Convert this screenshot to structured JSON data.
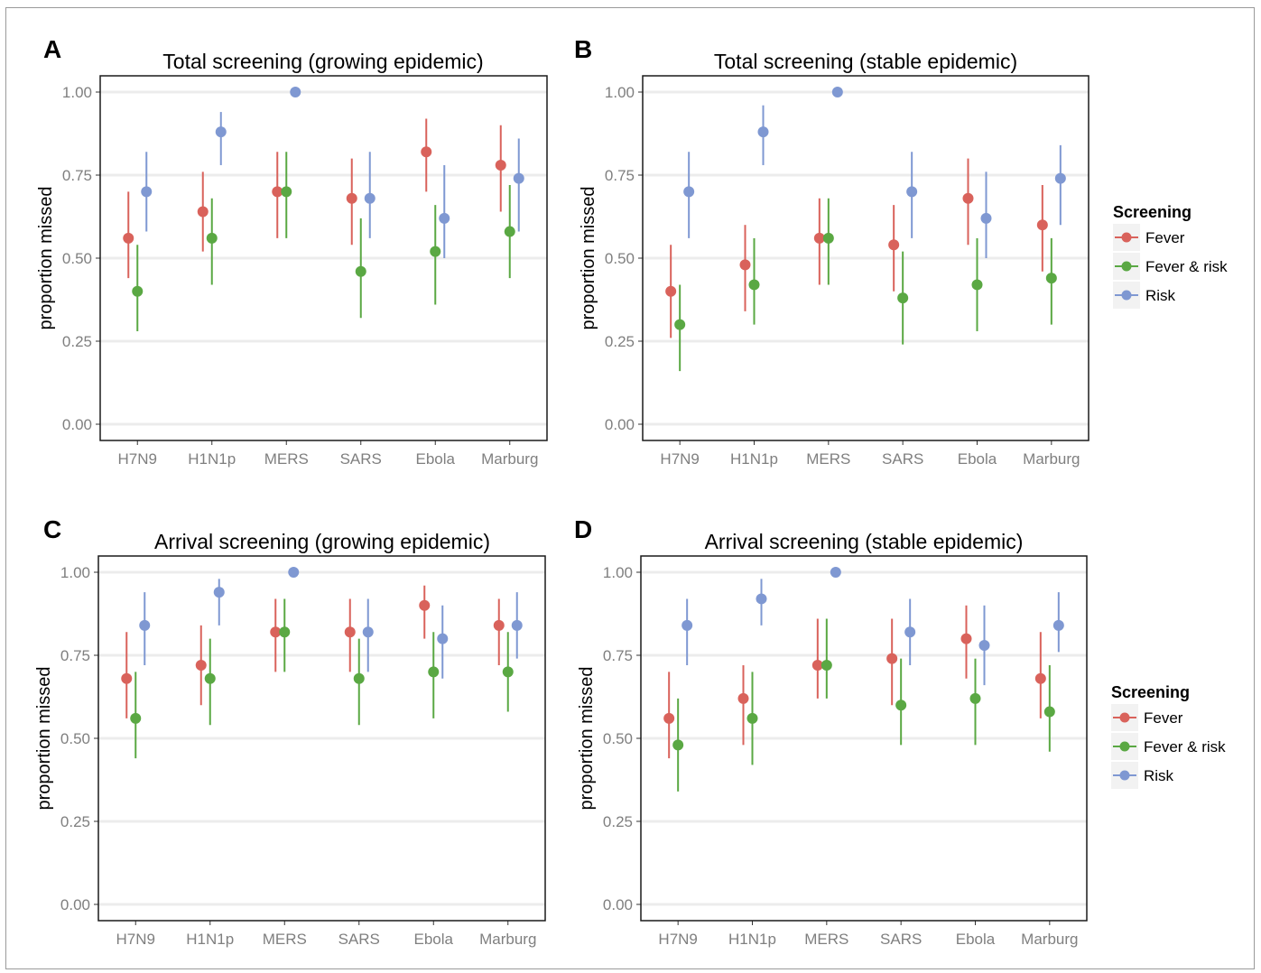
{
  "legend": {
    "title": "Screening",
    "entries": [
      "Fever",
      "Fever & risk",
      "Risk"
    ]
  },
  "colors": {
    "Fever": "#d9625b",
    "Fever & risk": "#5aa843",
    "Risk": "#7f98d2"
  },
  "chart_data": [
    {
      "type": "scatter",
      "panel": "A",
      "title": "Total screening (growing epidemic)",
      "xlabel": "",
      "ylabel": "proportion missed",
      "categories": [
        "H7N9",
        "H1N1p",
        "MERS",
        "SARS",
        "Ebola",
        "Marburg"
      ],
      "ylim": [
        0,
        1
      ],
      "yticks": [
        "0.00",
        "0.25",
        "0.50",
        "0.75",
        "1.00"
      ],
      "series": [
        {
          "name": "Fever",
          "values": [
            0.56,
            0.64,
            0.7,
            0.68,
            0.82,
            0.78
          ],
          "lower": [
            0.44,
            0.52,
            0.56,
            0.54,
            0.7,
            0.64
          ],
          "upper": [
            0.7,
            0.76,
            0.82,
            0.8,
            0.92,
            0.9
          ]
        },
        {
          "name": "Fever & risk",
          "values": [
            0.4,
            0.56,
            0.7,
            0.46,
            0.52,
            0.58
          ],
          "lower": [
            0.28,
            0.42,
            0.56,
            0.32,
            0.36,
            0.44
          ],
          "upper": [
            0.54,
            0.68,
            0.82,
            0.62,
            0.66,
            0.72
          ]
        },
        {
          "name": "Risk",
          "values": [
            0.7,
            0.88,
            1.0,
            0.68,
            0.62,
            0.74
          ],
          "lower": [
            0.58,
            0.78,
            1.0,
            0.56,
            0.5,
            0.58
          ],
          "upper": [
            0.82,
            0.94,
            1.0,
            0.82,
            0.78,
            0.86
          ]
        }
      ]
    },
    {
      "type": "scatter",
      "panel": "B",
      "title": "Total screening (stable epidemic)",
      "xlabel": "",
      "ylabel": "proportion missed",
      "categories": [
        "H7N9",
        "H1N1p",
        "MERS",
        "SARS",
        "Ebola",
        "Marburg"
      ],
      "ylim": [
        0,
        1
      ],
      "yticks": [
        "0.00",
        "0.25",
        "0.50",
        "0.75",
        "1.00"
      ],
      "series": [
        {
          "name": "Fever",
          "values": [
            0.4,
            0.48,
            0.56,
            0.54,
            0.68,
            0.6
          ],
          "lower": [
            0.26,
            0.34,
            0.42,
            0.4,
            0.54,
            0.46
          ],
          "upper": [
            0.54,
            0.6,
            0.68,
            0.66,
            0.8,
            0.72
          ]
        },
        {
          "name": "Fever & risk",
          "values": [
            0.3,
            0.42,
            0.56,
            0.38,
            0.42,
            0.44
          ],
          "lower": [
            0.16,
            0.3,
            0.42,
            0.24,
            0.28,
            0.3
          ],
          "upper": [
            0.42,
            0.56,
            0.68,
            0.52,
            0.56,
            0.56
          ]
        },
        {
          "name": "Risk",
          "values": [
            0.7,
            0.88,
            1.0,
            0.7,
            0.62,
            0.74
          ],
          "lower": [
            0.56,
            0.78,
            1.0,
            0.56,
            0.5,
            0.6
          ],
          "upper": [
            0.82,
            0.96,
            1.0,
            0.82,
            0.76,
            0.84
          ]
        }
      ]
    },
    {
      "type": "scatter",
      "panel": "C",
      "title": "Arrival screening (growing epidemic)",
      "xlabel": "",
      "ylabel": "proportion missed",
      "categories": [
        "H7N9",
        "H1N1p",
        "MERS",
        "SARS",
        "Ebola",
        "Marburg"
      ],
      "ylim": [
        0,
        1
      ],
      "yticks": [
        "0.00",
        "0.25",
        "0.50",
        "0.75",
        "1.00"
      ],
      "series": [
        {
          "name": "Fever",
          "values": [
            0.68,
            0.72,
            0.82,
            0.82,
            0.9,
            0.84
          ],
          "lower": [
            0.56,
            0.6,
            0.7,
            0.7,
            0.8,
            0.72
          ],
          "upper": [
            0.82,
            0.84,
            0.92,
            0.92,
            0.96,
            0.92
          ]
        },
        {
          "name": "Fever & risk",
          "values": [
            0.56,
            0.68,
            0.82,
            0.68,
            0.7,
            0.7
          ],
          "lower": [
            0.44,
            0.54,
            0.7,
            0.54,
            0.56,
            0.58
          ],
          "upper": [
            0.7,
            0.8,
            0.92,
            0.8,
            0.82,
            0.82
          ]
        },
        {
          "name": "Risk",
          "values": [
            0.84,
            0.94,
            1.0,
            0.82,
            0.8,
            0.84
          ],
          "lower": [
            0.72,
            0.84,
            1.0,
            0.7,
            0.68,
            0.74
          ],
          "upper": [
            0.94,
            0.98,
            1.0,
            0.92,
            0.9,
            0.94
          ]
        }
      ]
    },
    {
      "type": "scatter",
      "panel": "D",
      "title": "Arrival screening (stable epidemic)",
      "xlabel": "",
      "ylabel": "proportion missed",
      "categories": [
        "H7N9",
        "H1N1p",
        "MERS",
        "SARS",
        "Ebola",
        "Marburg"
      ],
      "ylim": [
        0,
        1
      ],
      "yticks": [
        "0.00",
        "0.25",
        "0.50",
        "0.75",
        "1.00"
      ],
      "series": [
        {
          "name": "Fever",
          "values": [
            0.56,
            0.62,
            0.72,
            0.74,
            0.8,
            0.68
          ],
          "lower": [
            0.44,
            0.48,
            0.62,
            0.6,
            0.68,
            0.56
          ],
          "upper": [
            0.7,
            0.72,
            0.86,
            0.86,
            0.9,
            0.82
          ]
        },
        {
          "name": "Fever & risk",
          "values": [
            0.48,
            0.56,
            0.72,
            0.6,
            0.62,
            0.58
          ],
          "lower": [
            0.34,
            0.42,
            0.62,
            0.48,
            0.48,
            0.46
          ],
          "upper": [
            0.62,
            0.7,
            0.86,
            0.74,
            0.74,
            0.72
          ]
        },
        {
          "name": "Risk",
          "values": [
            0.84,
            0.92,
            1.0,
            0.82,
            0.78,
            0.84
          ],
          "lower": [
            0.72,
            0.84,
            1.0,
            0.72,
            0.66,
            0.76
          ],
          "upper": [
            0.92,
            0.98,
            1.0,
            0.92,
            0.9,
            0.94
          ]
        }
      ]
    }
  ]
}
